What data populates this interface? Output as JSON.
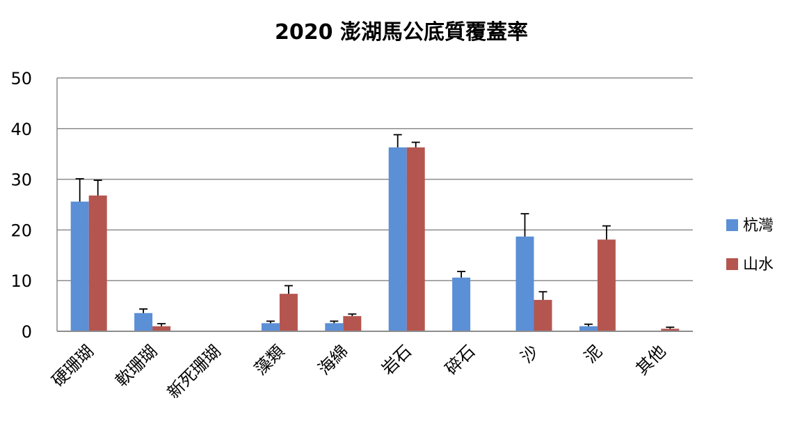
{
  "chart_data": {
    "type": "bar",
    "title": "2020 澎湖馬公底質覆蓋率",
    "xlabel": "",
    "ylabel": "",
    "ylim": [
      0,
      50
    ],
    "yticks": [
      "0",
      "10",
      "20",
      "30",
      "40",
      "50"
    ],
    "grid": true,
    "legend_position": "right",
    "categories": [
      "硬珊瑚",
      "軟珊瑚",
      "新死珊瑚",
      "藻類",
      "海綿",
      "岩石",
      "碎石",
      "沙",
      "泥",
      "其他"
    ],
    "series": [
      {
        "name": "杭灣",
        "color": "#5B8FD6",
        "values": [
          25.6,
          3.6,
          0,
          1.6,
          1.6,
          36.3,
          10.6,
          18.7,
          1.0,
          0
        ],
        "errors": [
          4.5,
          0.8,
          0,
          0.4,
          0.4,
          2.5,
          1.2,
          4.5,
          0.4,
          0
        ]
      },
      {
        "name": "山水",
        "color": "#B5554F",
        "values": [
          26.8,
          1.0,
          0,
          7.4,
          3.0,
          36.3,
          0,
          6.2,
          18.1,
          0.5
        ],
        "errors": [
          3.0,
          0.5,
          0,
          1.6,
          0.4,
          1.0,
          0,
          1.6,
          2.7,
          0.3
        ]
      }
    ]
  }
}
